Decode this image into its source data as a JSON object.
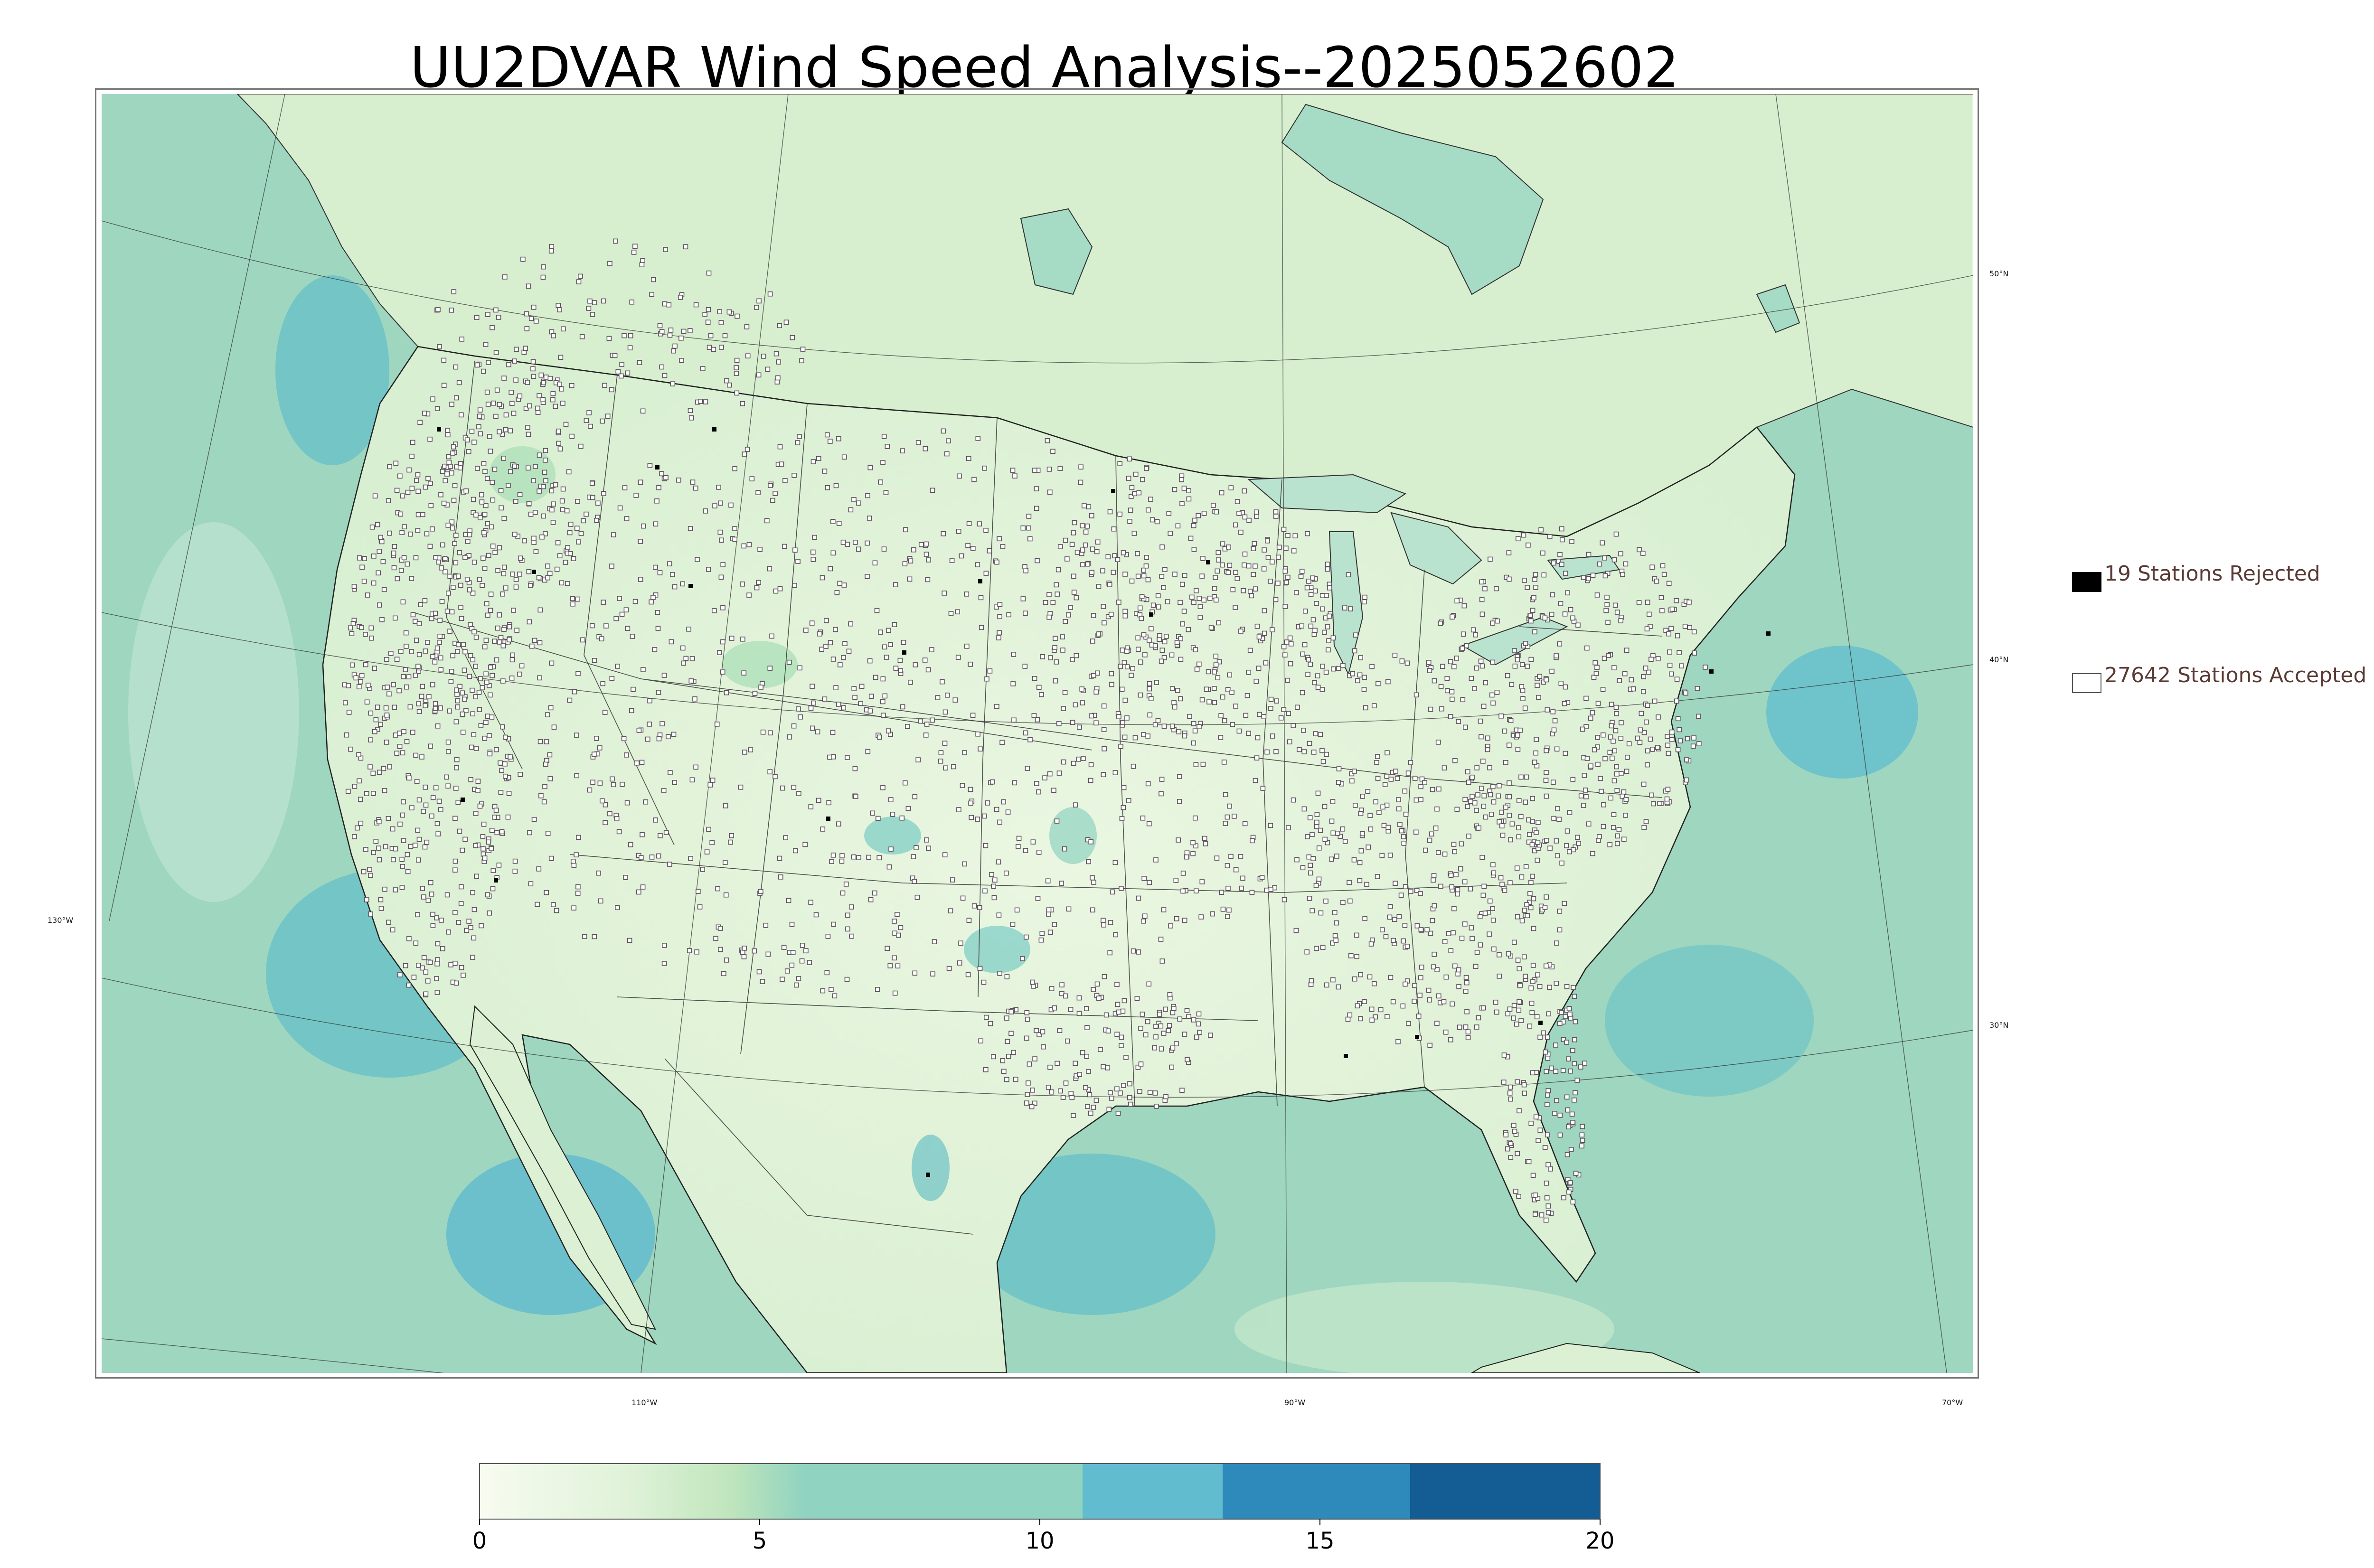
{
  "title": "UU2DVAR Wind Speed Analysis--2025052602",
  "legend": {
    "rejected": {
      "label": "19 Stations Rejected",
      "count": 19,
      "color": "#000000"
    },
    "accepted": {
      "label": "27642 Stations Accepted",
      "count": 27642,
      "color": "#ffffff"
    }
  },
  "graticule": {
    "latitudes": [
      "50°N",
      "40°N",
      "30°N"
    ],
    "longitudes": [
      "130°W",
      "110°W",
      "90°W",
      "70°W"
    ]
  },
  "colorbar": {
    "min": 0,
    "max": 20,
    "ticks": [
      "0",
      "5",
      "10",
      "15",
      "20"
    ],
    "colors": [
      "#f7fcf0",
      "#e0f3db",
      "#ccebc5",
      "#a8ddb5",
      "#7bccc4",
      "#4eb3d3",
      "#2b8cbe",
      "#0868ac"
    ]
  },
  "colors": {
    "ocean": "#9fd6c0",
    "land": "#e6f5dc",
    "high_wind": "#5cb8cf",
    "station_outline": "#555555"
  }
}
